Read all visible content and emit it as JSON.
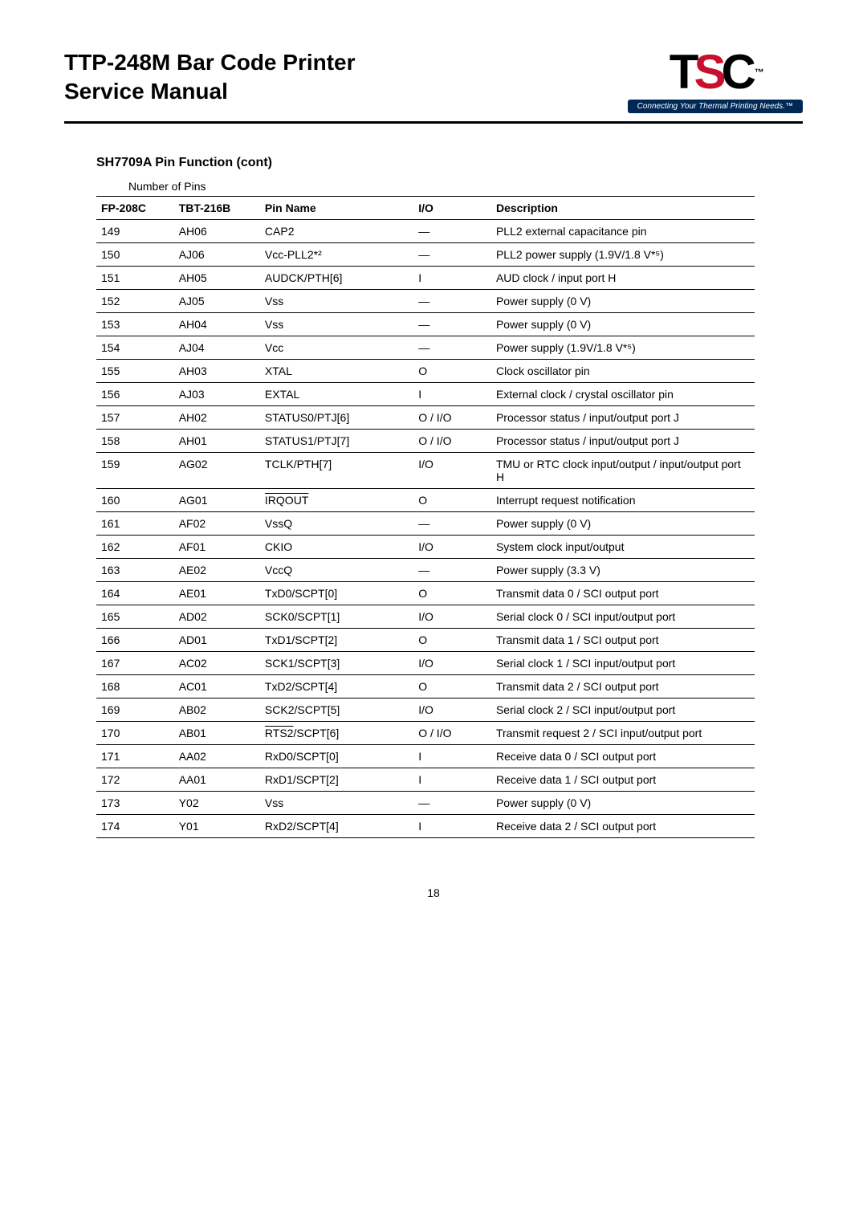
{
  "header": {
    "title_line1": "TTP-248M Bar Code Printer",
    "title_line2": "Service Manual",
    "logo_tagline": "Connecting Your Thermal Printing Needs.™"
  },
  "section_title": "SH7709A Pin Function (cont)",
  "subhead": "Number of Pins",
  "columns": {
    "fp": "FP-208C",
    "tbt": "TBT-216B",
    "pin": "Pin Name",
    "io": "I/O",
    "desc": "Description"
  },
  "rows": [
    {
      "fp": "149",
      "tbt": "AH06",
      "pin": "CAP2",
      "io": "—",
      "desc": "PLL2 external capacitance pin"
    },
    {
      "fp": "150",
      "tbt": "AJ06",
      "pin": "Vcc-PLL2*²",
      "io": "—",
      "desc": "PLL2 power supply (1.9V/1.8 V*⁵)"
    },
    {
      "fp": "151",
      "tbt": "AH05",
      "pin": "AUDCK/PTH[6]",
      "io": "I",
      "desc": "AUD clock / input port H"
    },
    {
      "fp": "152",
      "tbt": "AJ05",
      "pin": "Vss",
      "io": "—",
      "desc": "Power supply (0 V)"
    },
    {
      "fp": "153",
      "tbt": "AH04",
      "pin": "Vss",
      "io": "—",
      "desc": "Power supply (0 V)"
    },
    {
      "fp": "154",
      "tbt": "AJ04",
      "pin": "Vcc",
      "io": "—",
      "desc": "Power supply (1.9V/1.8 V*⁵)"
    },
    {
      "fp": "155",
      "tbt": "AH03",
      "pin": "XTAL",
      "io": "O",
      "desc": "Clock oscillator pin"
    },
    {
      "fp": "156",
      "tbt": "AJ03",
      "pin": "EXTAL",
      "io": "I",
      "desc": "External clock / crystal oscillator pin"
    },
    {
      "fp": "157",
      "tbt": "AH02",
      "pin": "STATUS0/PTJ[6]",
      "io": "O / I/O",
      "desc": "Processor status / input/output port J"
    },
    {
      "fp": "158",
      "tbt": "AH01",
      "pin": "STATUS1/PTJ[7]",
      "io": "O / I/O",
      "desc": "Processor status / input/output port J"
    },
    {
      "fp": "159",
      "tbt": "AG02",
      "pin": "TCLK/PTH[7]",
      "io": "I/O",
      "desc": "TMU or RTC clock input/output / input/output port H"
    },
    {
      "fp": "160",
      "tbt": "AG01",
      "pin_overline": "IRQOUT",
      "io": "O",
      "desc": "Interrupt request notification"
    },
    {
      "fp": "161",
      "tbt": "AF02",
      "pin": "VssQ",
      "io": "—",
      "desc": "Power supply (0 V)"
    },
    {
      "fp": "162",
      "tbt": "AF01",
      "pin": "CKIO",
      "io": "I/O",
      "desc": "System clock input/output"
    },
    {
      "fp": "163",
      "tbt": "AE02",
      "pin": "VccQ",
      "io": "—",
      "desc": "Power supply (3.3 V)"
    },
    {
      "fp": "164",
      "tbt": "AE01",
      "pin": "TxD0/SCPT[0]",
      "io": "O",
      "desc": "Transmit data 0 / SCI output port"
    },
    {
      "fp": "165",
      "tbt": "AD02",
      "pin": "SCK0/SCPT[1]",
      "io": "I/O",
      "desc": "Serial clock 0 / SCI input/output port"
    },
    {
      "fp": "166",
      "tbt": "AD01",
      "pin": "TxD1/SCPT[2]",
      "io": "O",
      "desc": "Transmit data 1 / SCI output port"
    },
    {
      "fp": "167",
      "tbt": "AC02",
      "pin": "SCK1/SCPT[3]",
      "io": "I/O",
      "desc": "Serial clock 1 / SCI input/output port"
    },
    {
      "fp": "168",
      "tbt": "AC01",
      "pin": "TxD2/SCPT[4]",
      "io": "O",
      "desc": "Transmit data 2 / SCI output port"
    },
    {
      "fp": "169",
      "tbt": "AB02",
      "pin": "SCK2/SCPT[5]",
      "io": "I/O",
      "desc": "Serial clock 2 / SCI input/output port"
    },
    {
      "fp": "170",
      "tbt": "AB01",
      "pin_prefix_overline": "RTS2",
      "pin_suffix": "/SCPT[6]",
      "io": "O / I/O",
      "desc": "Transmit request 2 / SCI input/output port"
    },
    {
      "fp": "171",
      "tbt": "AA02",
      "pin": "RxD0/SCPT[0]",
      "io": "I",
      "desc": "Receive data 0 / SCI output port"
    },
    {
      "fp": "172",
      "tbt": "AA01",
      "pin": "RxD1/SCPT[2]",
      "io": "I",
      "desc": "Receive data 1 / SCI output port"
    },
    {
      "fp": "173",
      "tbt": "Y02",
      "pin": "Vss",
      "io": "—",
      "desc": "Power supply (0 V)"
    },
    {
      "fp": "174",
      "tbt": "Y01",
      "pin": "RxD2/SCPT[4]",
      "io": "I",
      "desc": "Receive data 2 / SCI output port"
    }
  ],
  "page_number": "18"
}
